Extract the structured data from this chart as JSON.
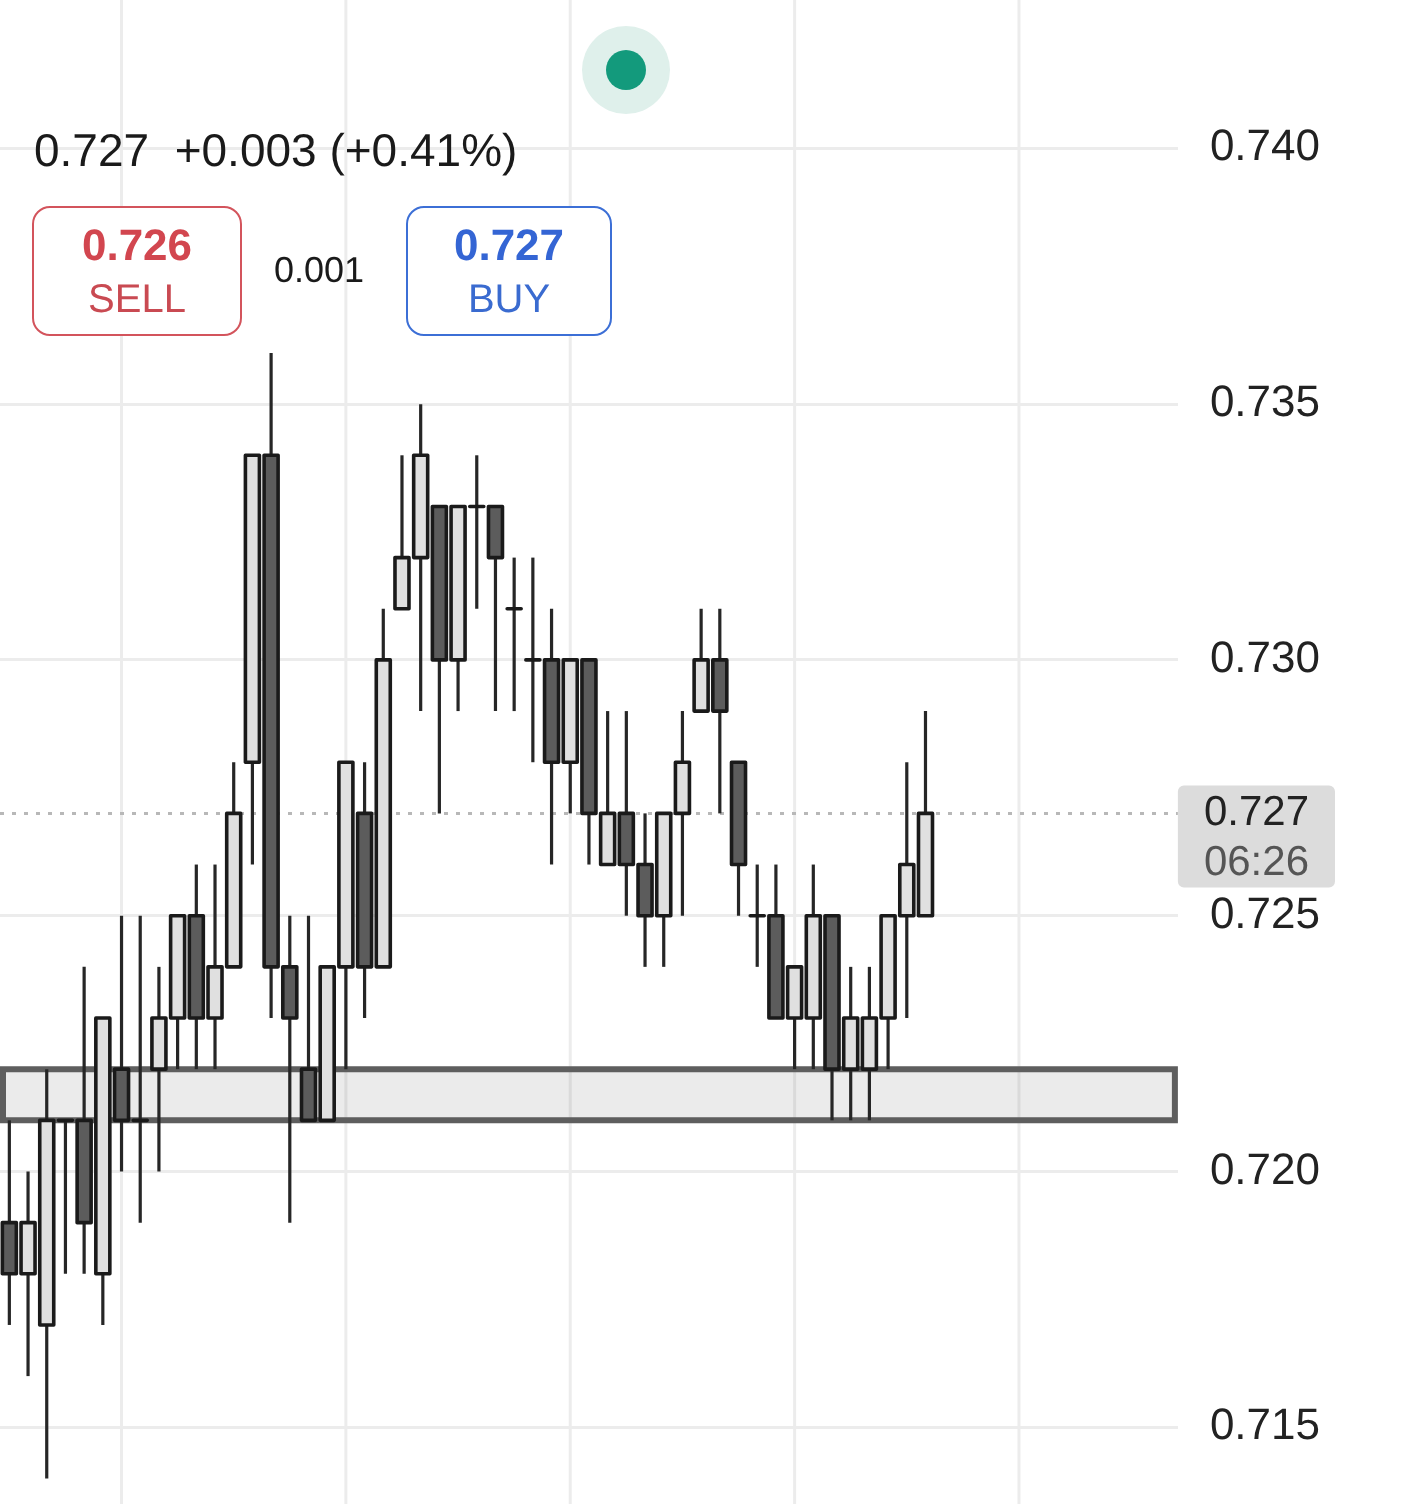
{
  "chart_data": {
    "type": "candlestick",
    "categories": [
      null,
      null,
      null,
      null,
      null,
      null,
      null,
      null,
      null,
      null,
      null,
      null,
      null,
      null,
      null,
      null,
      null,
      null,
      null,
      null,
      null,
      null,
      null,
      null,
      null,
      null,
      null,
      null,
      null,
      null,
      null,
      null,
      null,
      null,
      null,
      null,
      null,
      null,
      null,
      null,
      null,
      null,
      null,
      null,
      null,
      null,
      null,
      null,
      null,
      null,
      null,
      null,
      null,
      null,
      null,
      null,
      null,
      null,
      null,
      null,
      null,
      null,
      null
    ],
    "ohlc": [
      [
        0.719,
        0.721,
        0.717,
        0.718
      ],
      [
        0.718,
        0.72,
        0.716,
        0.719
      ],
      [
        0.717,
        0.722,
        0.714,
        0.721
      ],
      [
        0.721,
        0.721,
        0.718,
        0.721
      ],
      [
        0.721,
        0.724,
        0.718,
        0.719
      ],
      [
        0.718,
        0.723,
        0.717,
        0.723
      ],
      [
        0.722,
        0.725,
        0.72,
        0.721
      ],
      [
        0.721,
        0.725,
        0.719,
        0.721
      ],
      [
        0.722,
        0.724,
        0.72,
        0.723
      ],
      [
        0.723,
        0.725,
        0.722,
        0.725
      ],
      [
        0.725,
        0.726,
        0.722,
        0.723
      ],
      [
        0.723,
        0.726,
        0.722,
        0.724
      ],
      [
        0.724,
        0.728,
        0.724,
        0.727
      ],
      [
        0.728,
        0.734,
        0.726,
        0.734
      ],
      [
        0.734,
        0.736,
        0.723,
        0.724
      ],
      [
        0.724,
        0.725,
        0.719,
        0.723
      ],
      [
        0.722,
        0.725,
        0.721,
        0.721
      ],
      [
        0.721,
        0.724,
        0.721,
        0.724
      ],
      [
        0.724,
        0.728,
        0.722,
        0.728
      ],
      [
        0.727,
        0.728,
        0.723,
        0.724
      ],
      [
        0.724,
        0.731,
        0.724,
        0.73
      ],
      [
        0.731,
        0.734,
        0.731,
        0.732
      ],
      [
        0.732,
        0.735,
        0.729,
        0.734
      ],
      [
        0.733,
        0.733,
        0.727,
        0.73
      ],
      [
        0.73,
        0.733,
        0.729,
        0.733
      ],
      [
        0.733,
        0.734,
        0.731,
        0.733
      ],
      [
        0.733,
        0.733,
        0.729,
        0.732
      ],
      [
        0.731,
        0.732,
        0.729,
        0.731
      ],
      [
        0.73,
        0.732,
        0.728,
        0.73
      ],
      [
        0.73,
        0.731,
        0.726,
        0.728
      ],
      [
        0.728,
        0.73,
        0.727,
        0.73
      ],
      [
        0.73,
        0.73,
        0.726,
        0.727
      ],
      [
        0.726,
        0.729,
        0.726,
        0.727
      ],
      [
        0.727,
        0.729,
        0.725,
        0.726
      ],
      [
        0.726,
        0.727,
        0.724,
        0.725
      ],
      [
        0.725,
        0.727,
        0.724,
        0.727
      ],
      [
        0.727,
        0.729,
        0.725,
        0.728
      ],
      [
        0.729,
        0.731,
        0.729,
        0.73
      ],
      [
        0.73,
        0.731,
        0.727,
        0.729
      ],
      [
        0.728,
        0.728,
        0.725,
        0.726
      ],
      [
        0.725,
        0.726,
        0.724,
        0.725
      ],
      [
        0.725,
        0.726,
        0.723,
        0.723
      ],
      [
        0.723,
        0.724,
        0.722,
        0.724
      ],
      [
        0.723,
        0.726,
        0.722,
        0.725
      ],
      [
        0.725,
        0.725,
        0.721,
        0.722
      ],
      [
        0.722,
        0.724,
        0.721,
        0.723
      ],
      [
        0.722,
        0.724,
        0.721,
        0.723
      ],
      [
        0.723,
        0.725,
        0.722,
        0.725
      ],
      [
        0.725,
        0.728,
        0.723,
        0.726
      ],
      [
        0.725,
        0.729,
        0.725,
        0.727
      ],
      null,
      null,
      null,
      null,
      null,
      null,
      null,
      null,
      null,
      null,
      null,
      null,
      null
    ],
    "colors": [
      "#5c5c5c",
      "#e0e0e0",
      "#e0e0e0",
      "#1a1a1a",
      "#5c5c5c",
      "#e0e0e0",
      "#5c5c5c",
      "#1a1a1a",
      "#e0e0e0",
      "#e0e0e0",
      "#5c5c5c",
      "#e0e0e0",
      "#e0e0e0",
      "#e0e0e0",
      "#5c5c5c",
      "#5c5c5c",
      "#5c5c5c",
      "#e0e0e0",
      "#e0e0e0",
      "#5c5c5c",
      "#e0e0e0",
      "#e0e0e0",
      "#e0e0e0",
      "#5c5c5c",
      "#e0e0e0",
      "#1a1a1a",
      "#5c5c5c",
      "#1a1a1a",
      "#1a1a1a",
      "#5c5c5c",
      "#e0e0e0",
      "#5c5c5c",
      "#e0e0e0",
      "#5c5c5c",
      "#5c5c5c",
      "#e0e0e0",
      "#e0e0e0",
      "#e0e0e0",
      "#5c5c5c",
      "#5c5c5c",
      "#1a1a1a",
      "#5c5c5c",
      "#e0e0e0",
      "#e0e0e0",
      "#5c5c5c",
      "#e0e0e0",
      "#e0e0e0",
      "#e0e0e0",
      "#e0e0e0",
      "#e0e0e0",
      null,
      null,
      null,
      null,
      null,
      null,
      null,
      null,
      null,
      null,
      null,
      null,
      null
    ],
    "ylim": [
      0.7135,
      0.7429
    ],
    "yticks": [
      0.715,
      {
        "value": 0.72,
        "label": "0.720"
      },
      0.725,
      {
        "value": 0.73,
        "label": "0.730"
      },
      0.735,
      {
        "value": 0.74,
        "label": "0.740"
      }
    ],
    "grid": true,
    "tick_labels": "y",
    "ref_lines": [
      {
        "axis": "y",
        "value": 0.727,
        "label": "0.727\n06:26",
        "color": "#b8b8b8",
        "line_style": "dotted"
      }
    ],
    "bands": [
      {
        "axis": "y",
        "from": 0.721,
        "to": 0.722,
        "color": "#5e5e5e"
      }
    ],
    "annotations": [
      "0.727  +0.003 (+0.41%)",
      "0.726",
      "SELL",
      "0.001",
      "0.727",
      "BUY"
    ]
  }
}
